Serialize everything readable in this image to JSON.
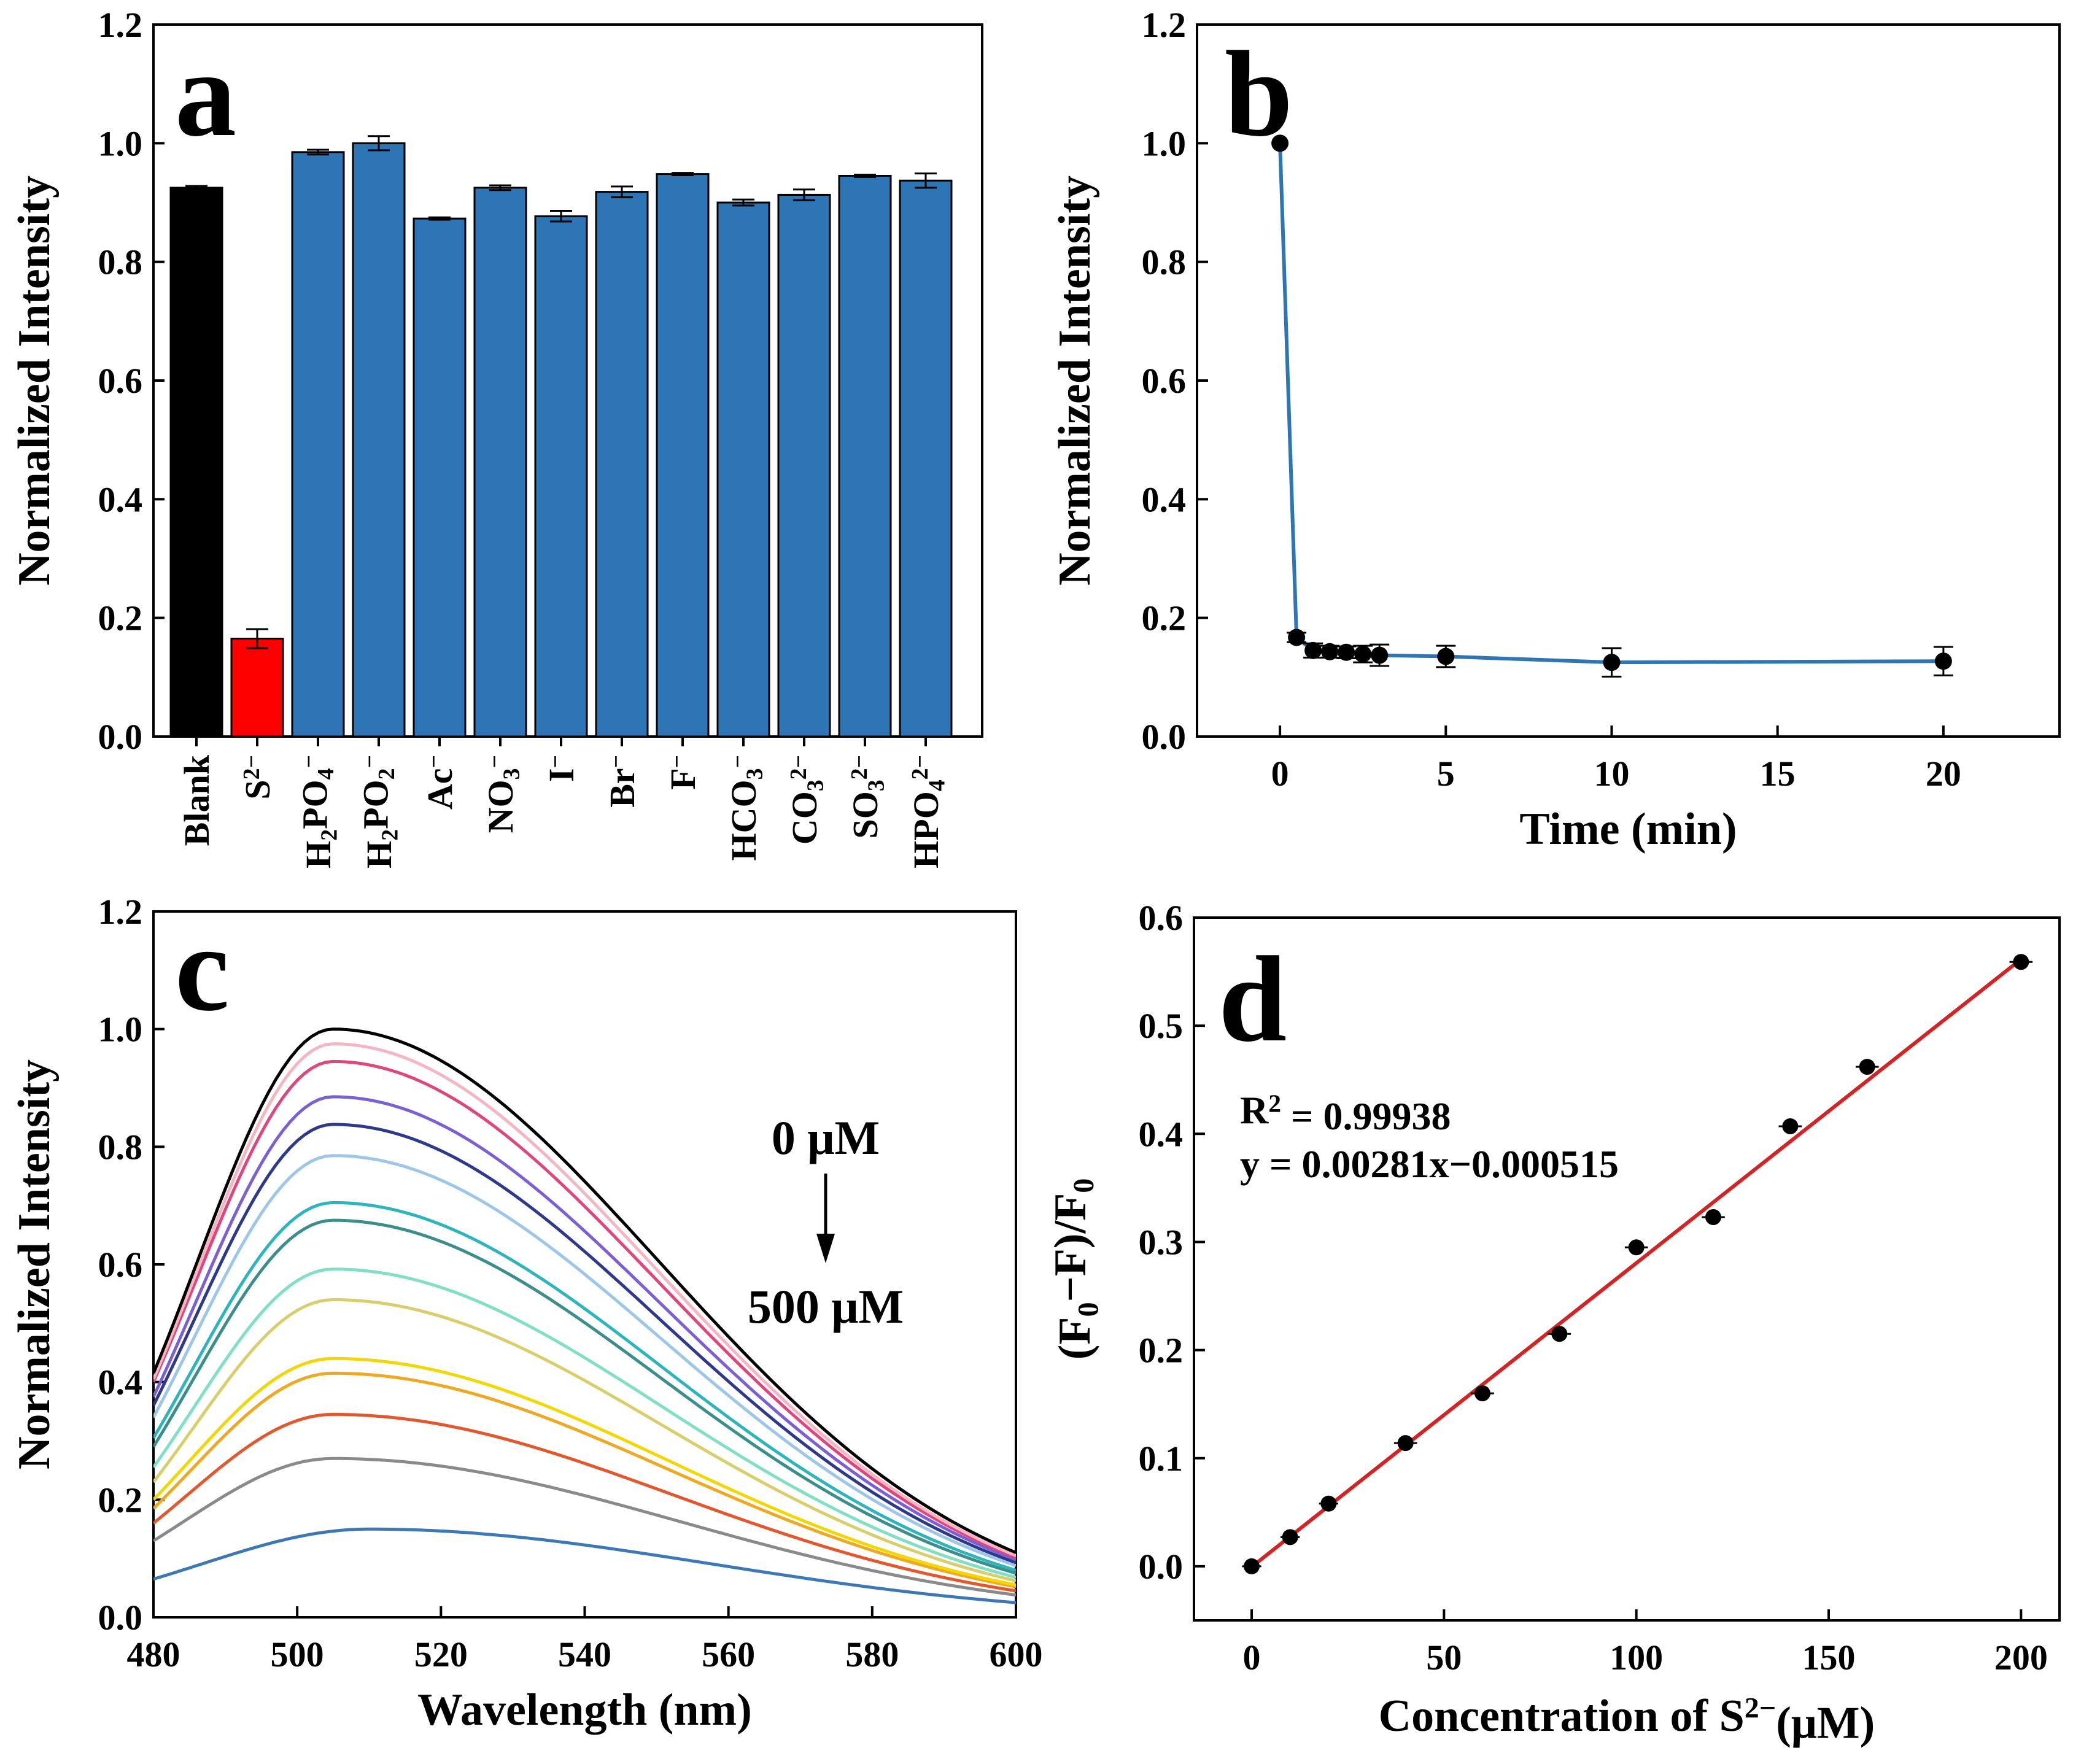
{
  "colors": {
    "axis": "#000000",
    "bar_blank": "#000000",
    "bar_sulfide": "#ff0000",
    "bar_anion": "#2e75b6",
    "line_b": "#2e75b6",
    "fit_line_d": "#d62222",
    "marker": "#000000"
  },
  "chart_data": [
    {
      "panel": "a",
      "type": "bar",
      "panel_label": "a",
      "ylabel": "Normalized Intensity",
      "xlabel": "",
      "ylim": [
        0.0,
        1.2
      ],
      "yticks": [
        "0.0",
        "0.2",
        "0.4",
        "0.6",
        "0.8",
        "1.0",
        "1.2"
      ],
      "grid": false,
      "categories": [
        {
          "base": "Blank",
          "parts": [
            [
              "Blank",
              ""
            ]
          ]
        },
        {
          "base": "S2-",
          "parts": [
            [
              "S",
              ""
            ],
            [
              "2−",
              "sup"
            ]
          ]
        },
        {
          "base": "H2PO4-",
          "parts": [
            [
              "H",
              ""
            ],
            [
              "2",
              "sub"
            ],
            [
              "PO",
              ""
            ],
            [
              "4",
              "sub"
            ],
            [
              "−",
              "sup"
            ]
          ]
        },
        {
          "base": "H2PO2-",
          "parts": [
            [
              "H",
              ""
            ],
            [
              "2",
              "sub"
            ],
            [
              "PO",
              ""
            ],
            [
              "2",
              "sub"
            ],
            [
              "−",
              "sup"
            ]
          ]
        },
        {
          "base": "Ac-",
          "parts": [
            [
              "Ac",
              ""
            ],
            [
              "−",
              "sup"
            ]
          ]
        },
        {
          "base": "NO3-",
          "parts": [
            [
              "NO",
              ""
            ],
            [
              "3",
              "sub"
            ],
            [
              "−",
              "sup"
            ]
          ]
        },
        {
          "base": "I-",
          "parts": [
            [
              "I",
              ""
            ],
            [
              "−",
              "sup"
            ]
          ]
        },
        {
          "base": "Br-",
          "parts": [
            [
              "Br",
              ""
            ],
            [
              "−",
              "sup"
            ]
          ]
        },
        {
          "base": "F-",
          "parts": [
            [
              "F",
              ""
            ],
            [
              "−",
              "sup"
            ]
          ]
        },
        {
          "base": "HCO3-",
          "parts": [
            [
              "HCO",
              ""
            ],
            [
              "3",
              "sub"
            ],
            [
              "−",
              "sup"
            ]
          ]
        },
        {
          "base": "CO3 2-",
          "parts": [
            [
              "CO",
              ""
            ],
            [
              "3",
              "sub"
            ],
            [
              "2−",
              "sup"
            ]
          ]
        },
        {
          "base": "SO3 2-",
          "parts": [
            [
              "SO",
              ""
            ],
            [
              "3",
              "sub"
            ],
            [
              "2−",
              "sup"
            ]
          ]
        },
        {
          "base": "HPO4 2-",
          "parts": [
            [
              "HPO",
              ""
            ],
            [
              "4",
              "sub"
            ],
            [
              "2−",
              "sup"
            ]
          ]
        }
      ],
      "values": [
        0.925,
        0.165,
        0.985,
        1.0,
        0.873,
        0.925,
        0.877,
        0.918,
        0.948,
        0.9,
        0.913,
        0.945,
        0.937
      ],
      "errors": [
        0.003,
        0.016,
        0.004,
        0.012,
        0.002,
        0.004,
        0.009,
        0.009,
        0.002,
        0.005,
        0.009,
        0.002,
        0.012
      ],
      "bar_colors": [
        "bar_blank",
        "bar_sulfide",
        "bar_anion",
        "bar_anion",
        "bar_anion",
        "bar_anion",
        "bar_anion",
        "bar_anion",
        "bar_anion",
        "bar_anion",
        "bar_anion",
        "bar_anion",
        "bar_anion"
      ]
    },
    {
      "panel": "b",
      "type": "line",
      "panel_label": "b",
      "xlabel": "Time (min)",
      "ylabel": "Normalized Intensity",
      "xlim": [
        -2.5,
        23.5
      ],
      "ylim": [
        0.0,
        1.2
      ],
      "xticks": [
        0,
        5,
        10,
        15,
        20
      ],
      "xticklabels": [
        "0",
        "5",
        "10",
        "15",
        "20"
      ],
      "yticks": [
        "0.0",
        "0.2",
        "0.4",
        "0.6",
        "0.8",
        "1.0",
        "1.2"
      ],
      "grid": false,
      "x": [
        0,
        0.5,
        1,
        1.5,
        2,
        2.5,
        3,
        5,
        10,
        20
      ],
      "y": [
        1.0,
        0.167,
        0.145,
        0.143,
        0.142,
        0.139,
        0.137,
        0.135,
        0.125,
        0.127
      ],
      "errors": [
        0.0,
        0.008,
        0.012,
        0.01,
        0.01,
        0.014,
        0.018,
        0.018,
        0.024,
        0.024
      ]
    },
    {
      "panel": "c",
      "type": "line",
      "panel_label": "c",
      "xlabel": "Wavelength (nm)",
      "ylabel": "Normalized Intensity",
      "xlim": [
        480,
        600
      ],
      "ylim": [
        0.0,
        1.2
      ],
      "xticks": [
        480,
        500,
        520,
        540,
        560,
        580,
        600
      ],
      "xticklabels": [
        "480",
        "500",
        "520",
        "540",
        "560",
        "580",
        "600"
      ],
      "yticks": [
        "0.0",
        "0.2",
        "0.4",
        "0.6",
        "0.8",
        "1.0",
        "1.2"
      ],
      "grid": false,
      "series": [
        {
          "name": "0 μM",
          "color": "#000000",
          "peak_nm": 505,
          "peak": 1.0,
          "start": 0.415,
          "end": 0.11
        },
        {
          "color": "#f4b6c2",
          "peak_nm": 505,
          "peak": 0.975,
          "start": 0.405,
          "end": 0.105
        },
        {
          "color": "#e0457b",
          "peak_nm": 505,
          "peak": 0.945,
          "start": 0.4,
          "end": 0.102
        },
        {
          "color": "#7b5fd6",
          "peak_nm": 505,
          "peak": 0.885,
          "start": 0.375,
          "end": 0.098
        },
        {
          "color": "#2d3a8c",
          "peak_nm": 505,
          "peak": 0.838,
          "start": 0.36,
          "end": 0.093
        },
        {
          "color": "#9cc7e8",
          "peak_nm": 505,
          "peak": 0.785,
          "start": 0.34,
          "end": 0.088
        },
        {
          "color": "#2bb5bd",
          "peak_nm": 505,
          "peak": 0.705,
          "start": 0.305,
          "end": 0.08
        },
        {
          "color": "#3a8f8a",
          "peak_nm": 505,
          "peak": 0.675,
          "start": 0.29,
          "end": 0.075
        },
        {
          "color": "#7fe0c4",
          "peak_nm": 505,
          "peak": 0.592,
          "start": 0.255,
          "end": 0.068
        },
        {
          "color": "#d9cf6a",
          "peak_nm": 505,
          "peak": 0.54,
          "start": 0.23,
          "end": 0.062
        },
        {
          "color": "#f2d700",
          "peak_nm": 505,
          "peak": 0.44,
          "start": 0.2,
          "end": 0.055
        },
        {
          "color": "#f0a81e",
          "peak_nm": 505,
          "peak": 0.415,
          "start": 0.185,
          "end": 0.052
        },
        {
          "color": "#e5562b",
          "peak_nm": 505,
          "peak": 0.345,
          "start": 0.16,
          "end": 0.045
        },
        {
          "color": "#8a8a8a",
          "peak_nm": 505,
          "peak": 0.27,
          "start": 0.13,
          "end": 0.038
        },
        {
          "name": "500 μM",
          "color": "#3b78b8",
          "peak_nm": 510,
          "peak": 0.15,
          "start": 0.065,
          "end": 0.025
        }
      ],
      "annotations": {
        "top": "0 μM",
        "bottom": "500 μM"
      }
    },
    {
      "panel": "d",
      "type": "scatter",
      "panel_label": "d",
      "xlabel_parts": [
        [
          "Concentration of S",
          ""
        ],
        [
          "2−",
          "sup"
        ],
        [
          "(μM)",
          ""
        ]
      ],
      "ylabel_parts": [
        [
          "(F",
          ""
        ],
        [
          "0",
          "sub"
        ],
        [
          "−F)/F",
          ""
        ],
        [
          "0",
          "sub"
        ]
      ],
      "xlim": [
        -15,
        210
      ],
      "ylim": [
        -0.05,
        0.6
      ],
      "xticks": [
        0,
        50,
        100,
        150,
        200
      ],
      "xticklabels": [
        "0",
        "50",
        "100",
        "150",
        "200"
      ],
      "yticks": [
        0.0,
        0.1,
        0.2,
        0.3,
        0.4,
        0.5,
        0.6
      ],
      "yticklabels": [
        "0.0",
        "0.1",
        "0.2",
        "0.3",
        "0.4",
        "0.5",
        "0.6"
      ],
      "grid": false,
      "x": [
        0,
        10,
        20,
        40,
        60,
        80,
        100,
        120,
        140,
        160,
        200
      ],
      "y": [
        0.0,
        0.027,
        0.058,
        0.114,
        0.16,
        0.215,
        0.295,
        0.323,
        0.407,
        0.462,
        0.559
      ],
      "x_errors": [
        2.5,
        2.5,
        2.5,
        3.0,
        3.0,
        3.0,
        3.0,
        3.0,
        3.0,
        3.0,
        3.0
      ],
      "fit": {
        "slope": 0.00281,
        "intercept": -0.000515,
        "x_range": [
          0,
          200
        ]
      },
      "r2_parts": [
        [
          "R",
          ""
        ],
        [
          "2",
          "sup"
        ],
        [
          " = 0.99938",
          ""
        ]
      ],
      "equation": "y = 0.00281x−0.000515"
    }
  ]
}
